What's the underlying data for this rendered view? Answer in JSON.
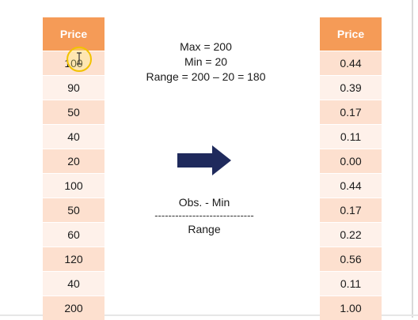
{
  "left_table": {
    "header": "Price",
    "values": [
      "100",
      "90",
      "50",
      "40",
      "20",
      "100",
      "50",
      "60",
      "120",
      "40",
      "200"
    ]
  },
  "right_table": {
    "header": "Price",
    "values": [
      "0.44",
      "0.39",
      "0.17",
      "0.11",
      "0.00",
      "0.44",
      "0.17",
      "0.22",
      "0.56",
      "0.11",
      "1.00"
    ]
  },
  "formula": {
    "max_line": "Max = 200",
    "min_line": "Min = 20",
    "range_line": "Range = 200 – 20 = 180"
  },
  "fraction": {
    "numerator": "Obs. - Min",
    "divider": "-----------------------------",
    "denominator": "Range"
  },
  "colors": {
    "header": "#f59b57",
    "row_dark": "#fde0cf",
    "row_light": "#fef1ea",
    "arrow": "#1f2a5c",
    "cursor_ring": "#f2c200"
  },
  "icons": {
    "arrow": "arrow-right-icon",
    "cursor": "text-cursor-icon"
  }
}
